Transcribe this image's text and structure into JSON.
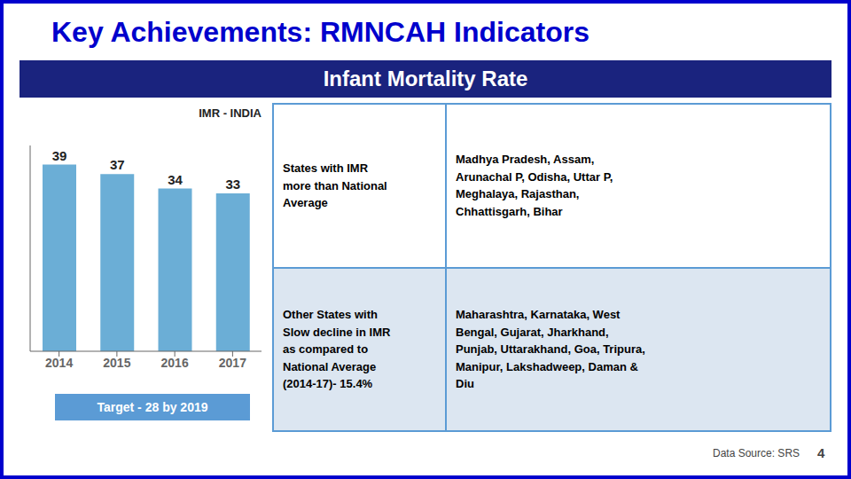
{
  "chart_data": {
    "type": "bar",
    "title": "Key Achievements: RMNCAH Indicators",
    "subtitle": "Infant Mortality Rate",
    "categories": [
      "2014",
      "2015",
      "2016",
      "2017"
    ],
    "values": [
      39,
      37,
      34,
      33
    ],
    "color": "#6baed6",
    "ylim": [
      0,
      43
    ],
    "data_labels": true,
    "tick_labels": "x",
    "grid": false,
    "annotations": [
      "IMR - INDIA",
      "Target - 28 by 2019"
    ],
    "table": [
      [
        "States with IMR\nmore than National\nAverage",
        "Madhya Pradesh, Assam,\nArunachal P, Odisha, Uttar P,\nMeghalaya, Rajasthan,\nChhattisgarh, Bihar"
      ],
      [
        "Other States with\nSlow decline in IMR\nas compared to\nNational Average\n(2014-17)- 15.4%",
        "Maharashtra, Karnataka, West\nBengal, Gujarat, Jharkhand,\nPunjab, Uttarakhand, Goa, Tripura,\nManipur, Lakshadweep, Daman &\nDiu"
      ]
    ],
    "source": "Data Source: SRS",
    "page": "4"
  }
}
